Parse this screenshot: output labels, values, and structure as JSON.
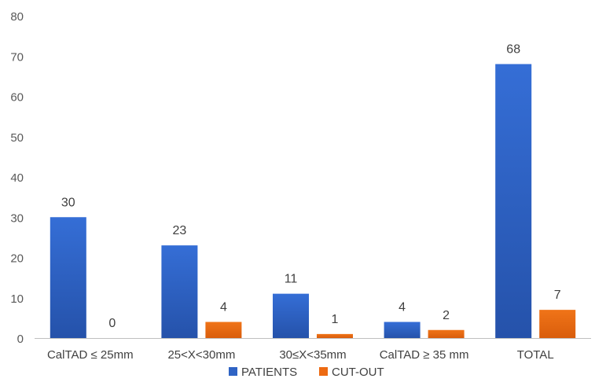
{
  "chart_data": {
    "type": "bar",
    "title": "",
    "xlabel": "",
    "ylabel": "",
    "categories": [
      "CalTAD ≤ 25mm",
      "25<X<30mm",
      "30≤X<35mm",
      "CalTAD ≥ 35 mm",
      "TOTAL"
    ],
    "series": [
      {
        "name": "PATIENTS",
        "values": [
          30,
          23,
          11,
          4,
          68
        ],
        "color": "#2f63c4"
      },
      {
        "name": "CUT-OUT",
        "values": [
          0,
          4,
          1,
          2,
          7
        ],
        "color": "#ed6a12"
      }
    ],
    "ylim": [
      0,
      80
    ],
    "yticks": [
      0,
      10,
      20,
      30,
      40,
      50,
      60,
      70,
      80
    ],
    "grid": false,
    "legend": "bottom-center",
    "data_labels": true
  }
}
